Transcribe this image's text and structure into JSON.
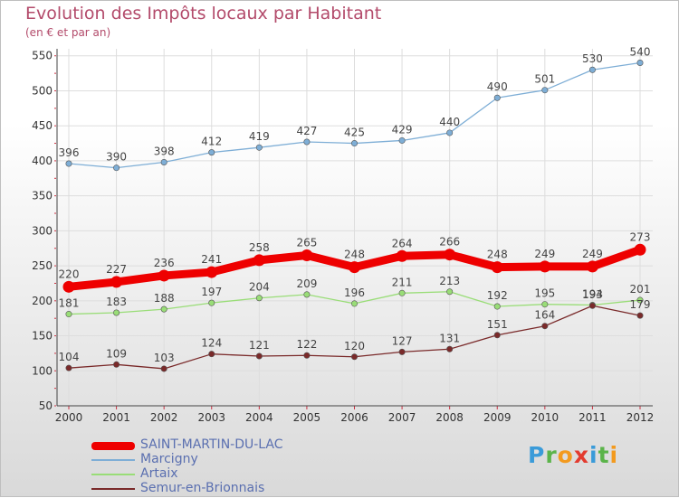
{
  "header": {
    "title": "Evolution des Impôts locaux par Habitant",
    "subtitle": "(en € et par an)"
  },
  "brand": {
    "text": "Proxiti"
  },
  "chart_data": {
    "type": "line",
    "title": "Evolution des Impôts locaux par Habitant",
    "subtitle": "(en € et par an)",
    "xlabel": "",
    "ylabel": "",
    "x": [
      "2000",
      "2001",
      "2002",
      "2003",
      "2004",
      "2005",
      "2006",
      "2007",
      "2008",
      "2009",
      "2010",
      "2011",
      "2012"
    ],
    "y_ticks": [
      50,
      100,
      150,
      200,
      250,
      300,
      350,
      400,
      450,
      500,
      550
    ],
    "ylim": [
      50,
      560
    ],
    "grid": true,
    "legend_position": "bottom-left",
    "series": [
      {
        "name": "SAINT-MARTIN-DU-LAC",
        "color": "#ee0000",
        "emphasis": true,
        "values": [
          220,
          227,
          236,
          241,
          258,
          265,
          248,
          264,
          266,
          248,
          249,
          249,
          273
        ]
      },
      {
        "name": "Marcigny",
        "color": "#7eaed6",
        "emphasis": false,
        "values": [
          396,
          390,
          398,
          412,
          419,
          427,
          425,
          429,
          440,
          490,
          501,
          530,
          540
        ]
      },
      {
        "name": "Artaix",
        "color": "#99dd77",
        "emphasis": false,
        "values": [
          181,
          183,
          188,
          197,
          204,
          209,
          196,
          211,
          213,
          192,
          195,
          194,
          201
        ]
      },
      {
        "name": "Semur-en-Brionnais",
        "color": "#7a2a2a",
        "emphasis": false,
        "values": [
          104,
          109,
          103,
          124,
          121,
          122,
          120,
          127,
          131,
          151,
          164,
          193,
          179
        ]
      }
    ]
  }
}
